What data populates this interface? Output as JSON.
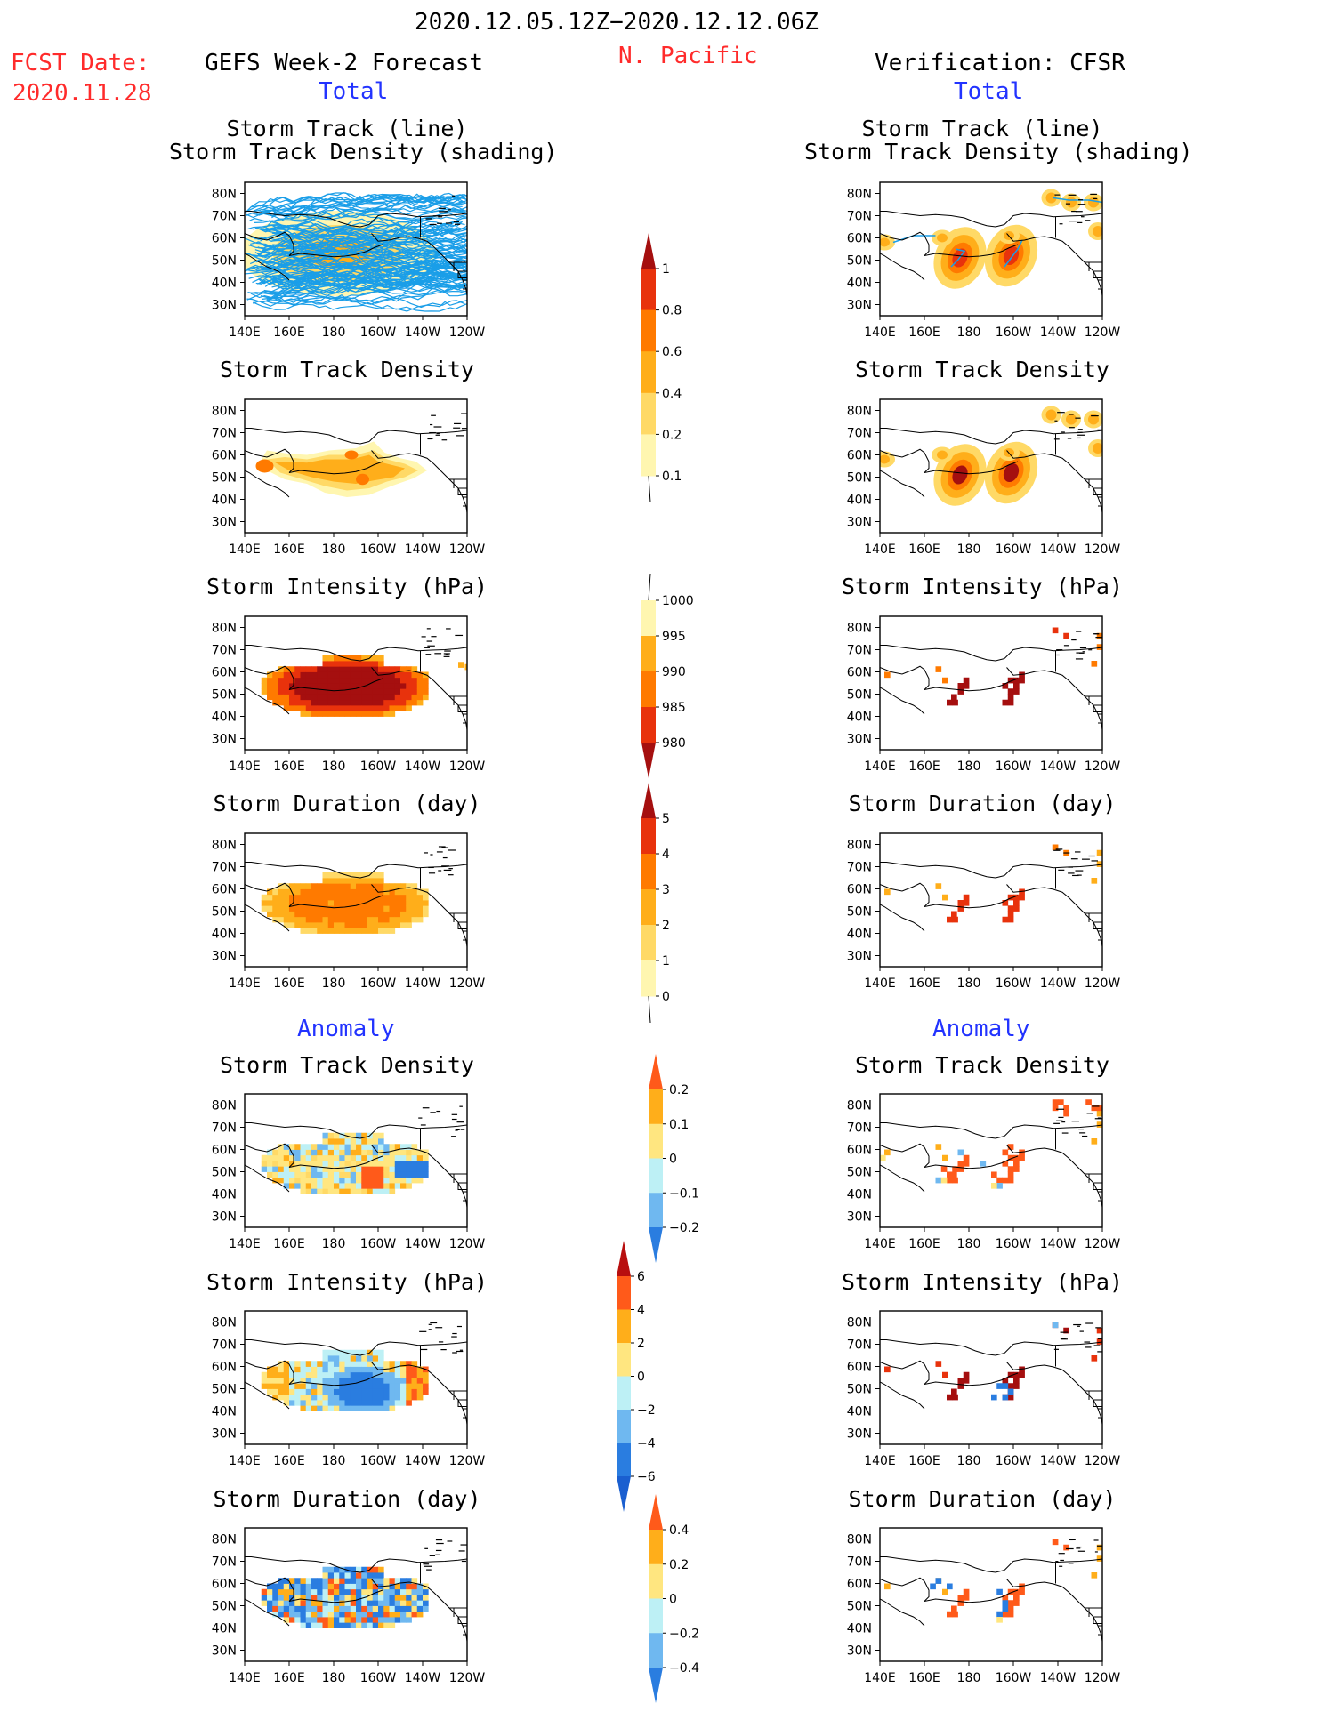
{
  "header": {
    "period": "2020.12.05.12Z−2020.12.12.06Z",
    "fcst_label": "FCST Date:",
    "fcst_date": "2020.11.28",
    "forecast_title": "GEFS Week-2 Forecast",
    "region": "N. Pacific",
    "verification_title": "Verification: CFSR",
    "total_label": "Total",
    "anomaly_label": "Anomaly"
  },
  "panel_titles": {
    "track_line": "Storm Track (line)",
    "track_density_shading": "Storm Track Density (shading)",
    "track_density": "Storm Track Density",
    "intensity": "Storm Intensity (hPa)",
    "duration": "Storm Duration (day)"
  },
  "axes": {
    "lon_ticks": [
      "140E",
      "160E",
      "180",
      "160W",
      "140W",
      "120W"
    ],
    "lat_ticks": [
      "80N",
      "70N",
      "60N",
      "50N",
      "40N",
      "30N"
    ]
  },
  "colorbars": [
    {
      "id": "density",
      "labels": [
        "1",
        "0.8",
        "0.6",
        "0.4",
        "0.2",
        "0.1"
      ],
      "colors": [
        "#a50f0f",
        "#e8320c",
        "#ff7a00",
        "#ffae1a",
        "#ffd966",
        "#fff6b0"
      ],
      "arrow_top": true,
      "arrow_bottom": false,
      "tail_bottom": true
    },
    {
      "id": "intensity",
      "labels": [
        "1000",
        "995",
        "990",
        "985",
        "980"
      ],
      "colors": [
        "#fff6b0",
        "#ffae1a",
        "#ff7a00",
        "#e8320c",
        "#a50f0f"
      ],
      "arrow_top": false,
      "arrow_bottom": true,
      "tail_top": true
    },
    {
      "id": "duration",
      "labels": [
        "5",
        "4",
        "3",
        "2",
        "1",
        "0"
      ],
      "colors": [
        "#a50f0f",
        "#e8320c",
        "#ff7a00",
        "#ffae1a",
        "#ffd966",
        "#fff6b0"
      ],
      "arrow_top": true,
      "arrow_bottom": false,
      "tail_bottom": true
    },
    {
      "id": "density_anom",
      "labels": [
        "0.2",
        "0.1",
        "0",
        "−0.1",
        "−0.2"
      ],
      "colors": [
        "#ff5a1a",
        "#ffae1a",
        "#ffe680",
        "#bdf0f5",
        "#6fb8f0",
        "#2a7de0"
      ],
      "arrow_top": true,
      "arrow_bottom": true
    },
    {
      "id": "intensity_anom",
      "labels": [
        "6",
        "4",
        "2",
        "0",
        "−2",
        "−4",
        "−6"
      ],
      "colors": [
        "#b80f0f",
        "#ff5a1a",
        "#ffae1a",
        "#ffe680",
        "#bdf0f5",
        "#6fb8f0",
        "#2a7de0",
        "#1a5fd0"
      ],
      "arrow_top": true,
      "arrow_bottom": true
    },
    {
      "id": "duration_anom",
      "labels": [
        "0.4",
        "0.2",
        "0",
        "−0.2",
        "−0.4"
      ],
      "colors": [
        "#ff5a1a",
        "#ffae1a",
        "#ffe680",
        "#bdf0f5",
        "#6fb8f0",
        "#2a7de0"
      ],
      "arrow_top": true,
      "arrow_bottom": true
    }
  ],
  "chart_data": [
    {
      "type": "heatmap",
      "column": "forecast",
      "section": "total",
      "title": "Storm Track (line) / Storm Track Density (shading)",
      "xlim": [
        140,
        240
      ],
      "ylim": [
        25,
        85
      ],
      "field": "track_lines"
    },
    {
      "type": "heatmap",
      "column": "forecast",
      "section": "total",
      "title": "Storm Track Density",
      "xlim": [
        140,
        240
      ],
      "ylim": [
        25,
        85
      ],
      "field": "density",
      "region": {
        "lon": [
          145,
          222
        ],
        "lat": [
          40,
          65
        ]
      },
      "peak": 0.4
    },
    {
      "type": "heatmap",
      "column": "forecast",
      "section": "total",
      "title": "Storm Intensity (hPa)",
      "xlim": [
        140,
        240
      ],
      "ylim": [
        25,
        85
      ],
      "field": "intensity",
      "region": {
        "lon": [
          145,
          222
        ],
        "lat": [
          38,
          65
        ]
      },
      "core": 980
    },
    {
      "type": "heatmap",
      "column": "forecast",
      "section": "total",
      "title": "Storm Duration (day)",
      "xlim": [
        140,
        240
      ],
      "ylim": [
        25,
        85
      ],
      "field": "duration",
      "region": {
        "lon": [
          145,
          222
        ],
        "lat": [
          38,
          65
        ]
      },
      "core": 3
    },
    {
      "type": "heatmap",
      "column": "forecast",
      "section": "anomaly",
      "title": "Storm Track Density",
      "xlim": [
        140,
        240
      ],
      "ylim": [
        25,
        85
      ],
      "field": "density_anom",
      "range": [
        -0.1,
        0.2
      ]
    },
    {
      "type": "heatmap",
      "column": "forecast",
      "section": "anomaly",
      "title": "Storm Intensity (hPa)",
      "xlim": [
        140,
        240
      ],
      "ylim": [
        25,
        85
      ],
      "field": "intensity_anom",
      "range": [
        -6,
        4
      ]
    },
    {
      "type": "heatmap",
      "column": "forecast",
      "section": "anomaly",
      "title": "Storm Duration (day)",
      "xlim": [
        140,
        240
      ],
      "ylim": [
        25,
        85
      ],
      "field": "duration_anom",
      "range": [
        -0.4,
        0.4
      ]
    },
    {
      "type": "heatmap",
      "column": "verification",
      "section": "total",
      "title": "Storm Track (line) / Storm Track Density (shading)",
      "xlim": [
        140,
        240
      ],
      "ylim": [
        25,
        85
      ],
      "field": "track_density",
      "blobs": [
        {
          "lon": 176,
          "lat": 51
        },
        {
          "lon": 199,
          "lat": 52
        },
        {
          "lon": 217,
          "lat": 78
        },
        {
          "lon": 234,
          "lat": 76
        }
      ]
    },
    {
      "type": "heatmap",
      "column": "verification",
      "section": "total",
      "title": "Storm Track Density",
      "xlim": [
        140,
        240
      ],
      "ylim": [
        25,
        85
      ],
      "field": "density",
      "blobs": [
        {
          "lon": 176,
          "lat": 51,
          "v": 1
        },
        {
          "lon": 199,
          "lat": 52,
          "v": 1
        },
        {
          "lon": 217,
          "lat": 78,
          "v": 0.4
        },
        {
          "lon": 234,
          "lat": 76,
          "v": 0.4
        }
      ]
    },
    {
      "type": "heatmap",
      "column": "verification",
      "section": "total",
      "title": "Storm Intensity (hPa)",
      "xlim": [
        140,
        240
      ],
      "ylim": [
        25,
        85
      ],
      "field": "intensity"
    },
    {
      "type": "heatmap",
      "column": "verification",
      "section": "total",
      "title": "Storm Duration (day)",
      "xlim": [
        140,
        240
      ],
      "ylim": [
        25,
        85
      ],
      "field": "duration"
    },
    {
      "type": "heatmap",
      "column": "verification",
      "section": "anomaly",
      "title": "Storm Track Density",
      "xlim": [
        140,
        240
      ],
      "ylim": [
        25,
        85
      ],
      "field": "density_anom"
    },
    {
      "type": "heatmap",
      "column": "verification",
      "section": "anomaly",
      "title": "Storm Intensity (hPa)",
      "xlim": [
        140,
        240
      ],
      "ylim": [
        25,
        85
      ],
      "field": "intensity_anom"
    },
    {
      "type": "heatmap",
      "column": "verification",
      "section": "anomaly",
      "title": "Storm Duration (day)",
      "xlim": [
        140,
        240
      ],
      "ylim": [
        25,
        85
      ],
      "field": "duration_anom"
    }
  ]
}
